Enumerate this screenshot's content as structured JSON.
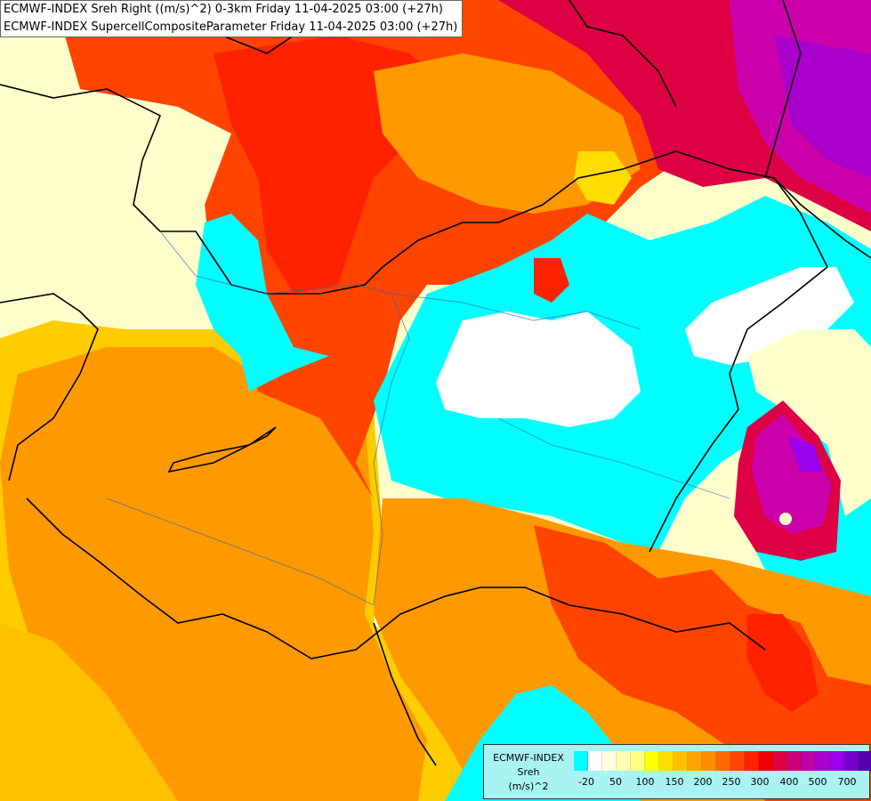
{
  "title": {
    "line1": "ECMWF-INDEX Sreh Right ((m/s)^2) 0-3km Friday 11-04-2025 03:00 (+27h)",
    "line2": "ECMWF-INDEX SupercellCompositeParameter Friday 11-04-2025 03:00 (+27h)"
  },
  "legend": {
    "name1": "ECMWF-INDEX",
    "name2": "Sreh",
    "name3": "(m/s)^2",
    "colors": [
      "#00ffff",
      "#ffffff",
      "#ffffe0",
      "#ffffb0",
      "#ffff80",
      "#ffff00",
      "#ffdd00",
      "#ffc000",
      "#ffa500",
      "#ff8c00",
      "#ff6a00",
      "#ff4500",
      "#ff2200",
      "#ee0000",
      "#dd0044",
      "#cc0077",
      "#bb00aa",
      "#aa00cc",
      "#9900ee",
      "#7700cc",
      "#5500aa",
      "#330088",
      "#110066"
    ],
    "ticks": [
      "-20",
      "50",
      "100",
      "150",
      "200",
      "250",
      "300",
      "400",
      "500",
      "700"
    ]
  },
  "map": {
    "field_colors": {
      "cyan": "#00ffff",
      "white": "#ffffff",
      "pale": "#ffffc8",
      "yellow": "#ffcc00",
      "orange": "#ff9900",
      "dark_orange": "#ff6600",
      "red": "#ff2200",
      "crimson": "#dd0055",
      "magenta": "#cc00aa",
      "purple": "#9900cc"
    }
  }
}
